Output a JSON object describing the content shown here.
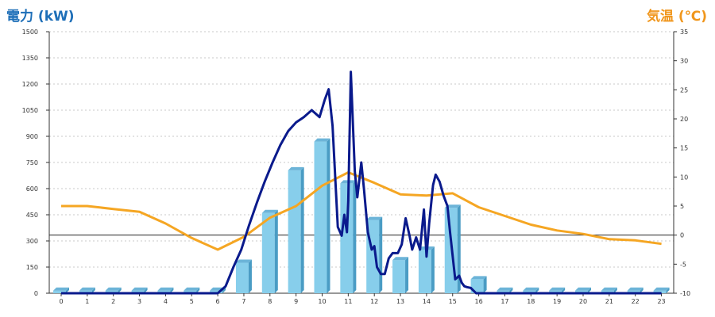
{
  "chart_data": {
    "type": "bar",
    "y_left_title": "電力 (kW)",
    "y_right_title": "気温 (℃)",
    "x_ticks": [
      "0",
      "1",
      "2",
      "3",
      "4",
      "5",
      "6",
      "7",
      "8",
      "9",
      "10",
      "11",
      "12",
      "13",
      "14",
      "15",
      "16",
      "17",
      "18",
      "19",
      "20",
      "21",
      "22",
      "23"
    ],
    "y_left_ticks": [
      "0",
      "150",
      "300",
      "450",
      "600",
      "750",
      "900",
      "1050",
      "1200",
      "1350",
      "1500"
    ],
    "y_right_ticks": [
      "-10",
      "-5",
      "0",
      "5",
      "10",
      "15",
      "20",
      "25",
      "30",
      "35"
    ],
    "ylim_left": [
      0,
      1500
    ],
    "ylim_right": [
      -10,
      35
    ],
    "grid": true,
    "colors": {
      "bar": "#87ceeb",
      "bar_side": "#4a9cc4",
      "bar_top": "#6cb4d8",
      "power_line": "#0a1a8c",
      "temp_line": "#f5a623",
      "left_title": "#1e6fb8",
      "right_title": "#f0961c"
    },
    "series": [
      {
        "type": "bar",
        "axis": "left",
        "x": [
          0,
          1,
          2,
          3,
          4,
          5,
          6,
          7,
          8,
          9,
          10,
          11,
          12,
          13,
          14,
          15,
          16,
          17,
          18,
          19,
          20,
          21,
          22,
          23
        ],
        "values": [
          15,
          15,
          15,
          15,
          15,
          15,
          15,
          175,
          460,
          705,
          870,
          630,
          420,
          190,
          250,
          490,
          80,
          15,
          15,
          15,
          15,
          15,
          15,
          15
        ]
      },
      {
        "type": "line",
        "axis": "left",
        "x": [
          0,
          6,
          6.3,
          6.6,
          6.9,
          7.2,
          7.5,
          7.8,
          8.1,
          8.4,
          8.7,
          9.0,
          9.3,
          9.6,
          9.9,
          10.1,
          10.25,
          10.4,
          10.6,
          10.75,
          10.85,
          10.95,
          11.0,
          11.1,
          11.25,
          11.35,
          11.5,
          11.6,
          11.75,
          11.9,
          12.0,
          12.1,
          12.25,
          12.4,
          12.55,
          12.7,
          12.9,
          13.05,
          13.2,
          13.35,
          13.45,
          13.6,
          13.75,
          13.9,
          14.0,
          14.1,
          14.25,
          14.35,
          14.5,
          14.65,
          14.8,
          14.9,
          15.1,
          15.25,
          15.35,
          15.45,
          15.55,
          15.7,
          15.9,
          16.1,
          16.3,
          16.5,
          16.7,
          17,
          23
        ],
        "values": [
          0,
          0,
          40,
          150,
          250,
          390,
          520,
          640,
          750,
          850,
          930,
          980,
          1010,
          1050,
          1010,
          1110,
          1170,
          960,
          380,
          330,
          450,
          350,
          530,
          1270,
          700,
          550,
          750,
          600,
          350,
          250,
          270,
          150,
          110,
          110,
          200,
          230,
          230,
          280,
          430,
          330,
          250,
          320,
          250,
          480,
          210,
          400,
          620,
          680,
          640,
          560,
          500,
          350,
          80,
          100,
          60,
          40,
          35,
          30,
          0,
          0,
          0,
          0,
          0,
          0,
          0
        ]
      },
      {
        "type": "line",
        "axis": "right",
        "x": [
          0,
          1,
          2,
          3,
          4,
          5,
          6,
          7,
          8,
          9,
          10,
          11,
          12,
          13,
          14,
          15,
          16,
          17,
          18,
          19,
          20,
          21,
          22,
          23
        ],
        "values": [
          5,
          5,
          4.5,
          4,
          2,
          -0.5,
          -2.5,
          -0.3,
          3,
          5,
          8.5,
          10.8,
          9,
          7,
          6.8,
          7.2,
          4.8,
          3.3,
          1.8,
          0.8,
          0.2,
          -0.7,
          -0.9,
          -1.5
        ]
      }
    ]
  }
}
